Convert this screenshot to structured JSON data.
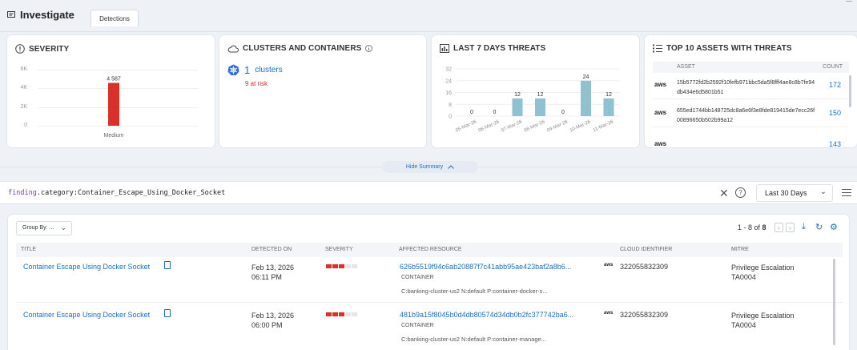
{
  "header": {
    "title": "Investigate",
    "tab": "Detections"
  },
  "cards": {
    "severity": {
      "title": "SEVERITY",
      "y_ticks": [
        "6K",
        "4K",
        "2K",
        "0"
      ],
      "bar_value_label": "4 587",
      "bar_category": "Medium",
      "bar_color": "#d9302c"
    },
    "clusters": {
      "title": "CLUSTERS AND CONTAINERS",
      "count": "1",
      "label": "clusters",
      "risk": "9 at risk"
    },
    "threats": {
      "title": "LAST 7 DAYS THREATS",
      "y_ticks": [
        "32",
        "24",
        "16",
        "8",
        "0"
      ],
      "bar_color": "#8fc1d1"
    },
    "assets": {
      "title": "TOP 10 ASSETS WITH THREATS",
      "col_asset": "ASSET",
      "col_count": "COUNT",
      "rows": [
        {
          "provider": "aws",
          "id": "15b5772fd2b2592f10fefb971bbc5da5f8fff4ae8c8b7fe94db434e6d5801b51",
          "count": "172"
        },
        {
          "provider": "aws",
          "id": "655ed1744bb148725dc8a6e6f3e8fde819415de7ecc26f00896650b502b99a12",
          "count": "150"
        },
        {
          "provider": "aws",
          "id": "",
          "count": "143"
        }
      ]
    }
  },
  "chart_data": [
    {
      "type": "bar",
      "title": "SEVERITY",
      "categories": [
        "Medium"
      ],
      "values": [
        4587
      ],
      "ylim": [
        0,
        6000
      ]
    },
    {
      "type": "bar",
      "title": "LAST 7 DAYS THREATS",
      "categories": [
        "05-Mar-26",
        "06-Mar-26",
        "07-Mar-26",
        "08-Mar-26",
        "09-Mar-26",
        "10-Mar-26",
        "11-Mar-26"
      ],
      "values": [
        0,
        0,
        12,
        12,
        0,
        24,
        12
      ],
      "ylim": [
        0,
        32
      ]
    }
  ],
  "summary_toggle": "Hide Summary",
  "query": {
    "key": "finding",
    "rest": ".category:Container_Escape_Using_Docker_Socket"
  },
  "time_range": "Last 30 Days",
  "results": {
    "group_by": "Group By: ...",
    "pager_prefix": "1 - 8 of ",
    "pager_total": "8",
    "columns": [
      "TITLE",
      "DETECTED ON",
      "SEVERITY",
      "AFFECTED RESOURCE",
      "CLOUD IDENTIFIER",
      "MITRE"
    ],
    "severity_colors": [
      "#d9302c",
      "#d9302c",
      "#d9302c",
      "#e6e6e6",
      "#e6e6e6"
    ],
    "rows": [
      {
        "title": "Container Escape Using Docker Socket",
        "date": "Feb 13, 2026",
        "time": "06:11 PM",
        "resource": "626b5519f94c6ab20887f7c41abb95ae423baf2a8b6...",
        "resource_type": "CONTAINER",
        "resource_path": "C:banking-cluster-us2 N:default P:container-docker-s...",
        "provider": "aws",
        "cloud_id": "322055832309",
        "mitre_tactic": "Privilege Escalation",
        "mitre_id": "TA0004"
      },
      {
        "title": "Container Escape Using Docker Socket",
        "date": "Feb 13, 2026",
        "time": "06:00 PM",
        "resource": "481b9a15f8045b0d4db80574d34db0b2fc377742ba6...",
        "resource_type": "CONTAINER",
        "resource_path": "C:banking-cluster-us2 N:default P:container-manage...",
        "provider": "aws",
        "cloud_id": "322055832309",
        "mitre_tactic": "Privilege Escalation",
        "mitre_id": "TA0004"
      }
    ]
  }
}
